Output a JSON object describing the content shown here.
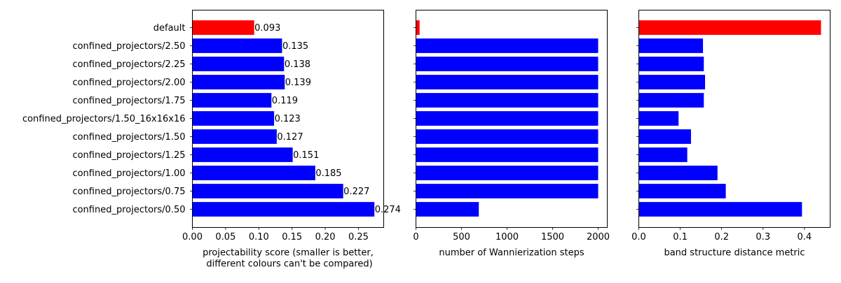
{
  "chart_data": [
    {
      "type": "bar",
      "orientation": "horizontal",
      "categories": [
        "default",
        "confined_projectors/2.50",
        "confined_projectors/2.25",
        "confined_projectors/2.00",
        "confined_projectors/1.75",
        "confined_projectors/1.50_16x16x16",
        "confined_projectors/1.50",
        "confined_projectors/1.25",
        "confined_projectors/1.00",
        "confined_projectors/0.75",
        "confined_projectors/0.50"
      ],
      "values": [
        0.093,
        0.135,
        0.138,
        0.139,
        0.119,
        0.123,
        0.127,
        0.151,
        0.185,
        0.227,
        0.274
      ],
      "data_labels": [
        "0.093",
        "0.135",
        "0.138",
        "0.139",
        "0.119",
        "0.123",
        "0.127",
        "0.151",
        "0.185",
        "0.227",
        "0.274"
      ],
      "bar_colors": [
        "#ff0000",
        "#0000ff",
        "#0000ff",
        "#0000ff",
        "#0000ff",
        "#0000ff",
        "#0000ff",
        "#0000ff",
        "#0000ff",
        "#0000ff",
        "#0000ff"
      ],
      "xlabel": "projectability score (smaller is better,\n different colours can't be compared)",
      "xlim": [
        0,
        0.288
      ],
      "xticks": [
        0,
        0.05,
        0.1,
        0.15,
        0.2,
        0.25
      ],
      "xtick_labels": [
        "0.00",
        "0.05",
        "0.10",
        "0.15",
        "0.20",
        "0.25"
      ],
      "show_category_labels": true,
      "grid": false
    },
    {
      "type": "bar",
      "orientation": "horizontal",
      "categories": [
        "default",
        "confined_projectors/2.50",
        "confined_projectors/2.25",
        "confined_projectors/2.00",
        "confined_projectors/1.75",
        "confined_projectors/1.50_16x16x16",
        "confined_projectors/1.50",
        "confined_projectors/1.25",
        "confined_projectors/1.00",
        "confined_projectors/0.75",
        "confined_projectors/0.50"
      ],
      "values": [
        40,
        2000,
        2000,
        2000,
        2000,
        2000,
        2000,
        2000,
        2000,
        2000,
        690
      ],
      "bar_colors": [
        "#ff0000",
        "#0000ff",
        "#0000ff",
        "#0000ff",
        "#0000ff",
        "#0000ff",
        "#0000ff",
        "#0000ff",
        "#0000ff",
        "#0000ff",
        "#0000ff"
      ],
      "xlabel": "number of Wannierization steps",
      "xlim": [
        0,
        2100
      ],
      "xticks": [
        0,
        500,
        1000,
        1500,
        2000
      ],
      "xtick_labels": [
        "0",
        "500",
        "1000",
        "1500",
        "2000"
      ],
      "show_category_labels": false,
      "grid": false
    },
    {
      "type": "bar",
      "orientation": "horizontal",
      "categories": [
        "default",
        "confined_projectors/2.50",
        "confined_projectors/2.25",
        "confined_projectors/2.00",
        "confined_projectors/1.75",
        "confined_projectors/1.50_16x16x16",
        "confined_projectors/1.50",
        "confined_projectors/1.25",
        "confined_projectors/1.00",
        "confined_projectors/0.75",
        "confined_projectors/0.50"
      ],
      "values": [
        0.44,
        0.155,
        0.157,
        0.16,
        0.157,
        0.096,
        0.126,
        0.117,
        0.19,
        0.21,
        0.394
      ],
      "bar_colors": [
        "#ff0000",
        "#0000ff",
        "#0000ff",
        "#0000ff",
        "#0000ff",
        "#0000ff",
        "#0000ff",
        "#0000ff",
        "#0000ff",
        "#0000ff",
        "#0000ff"
      ],
      "xlabel": "band structure distance metric",
      "xlim": [
        0,
        0.462
      ],
      "xticks": [
        0,
        0.1,
        0.2,
        0.3,
        0.4
      ],
      "xtick_labels": [
        "0.0",
        "0.1",
        "0.2",
        "0.3",
        "0.4"
      ],
      "show_category_labels": false,
      "grid": false
    }
  ]
}
